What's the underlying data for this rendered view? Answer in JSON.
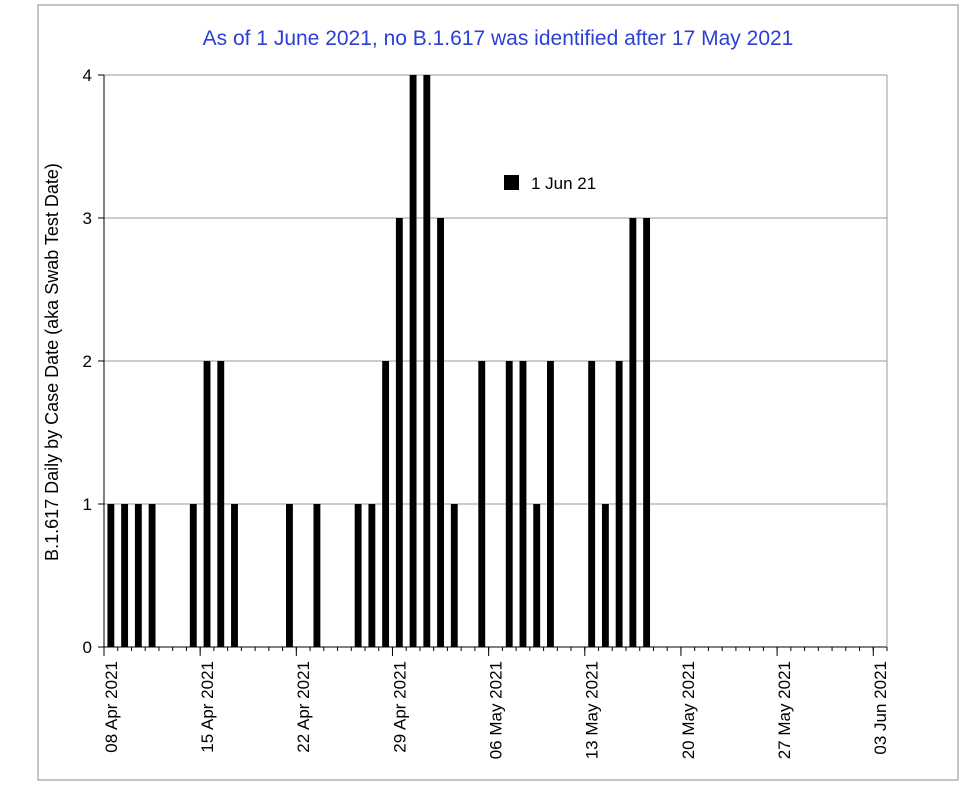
{
  "chart_data": {
    "type": "bar",
    "title": "As of 1 June 2021, no B.1.617 was identified after 17 May 2021",
    "title_color": "#2b3fd6",
    "xlabel": "",
    "ylabel": "B.1.617 Daily by Case Date (aka Swab Test Date)",
    "x_start": "08 Apr 2021",
    "x_end": "03 Jun 2021",
    "x_tick_labels": [
      "08 Apr 2021",
      "15 Apr 2021",
      "22 Apr 2021",
      "29 Apr 2021",
      "06 May 2021",
      "13 May 2021",
      "20 May 2021",
      "27 May 2021",
      "03 Jun 2021"
    ],
    "ylim": [
      0,
      4
    ],
    "y_ticks": [
      0,
      1,
      2,
      3,
      4
    ],
    "grid": true,
    "legend_position": "top-center",
    "bar_color": "#000000",
    "series": [
      {
        "name": "1 Jun 21",
        "values": [
          {
            "date": "08 Apr 2021",
            "value": 1
          },
          {
            "date": "09 Apr 2021",
            "value": 1
          },
          {
            "date": "10 Apr 2021",
            "value": 1
          },
          {
            "date": "11 Apr 2021",
            "value": 1
          },
          {
            "date": "14 Apr 2021",
            "value": 1
          },
          {
            "date": "15 Apr 2021",
            "value": 2
          },
          {
            "date": "16 Apr 2021",
            "value": 2
          },
          {
            "date": "17 Apr 2021",
            "value": 1
          },
          {
            "date": "21 Apr 2021",
            "value": 1
          },
          {
            "date": "23 Apr 2021",
            "value": 1
          },
          {
            "date": "26 Apr 2021",
            "value": 1
          },
          {
            "date": "27 Apr 2021",
            "value": 1
          },
          {
            "date": "28 Apr 2021",
            "value": 2
          },
          {
            "date": "29 Apr 2021",
            "value": 3
          },
          {
            "date": "30 Apr 2021",
            "value": 4
          },
          {
            "date": "01 May 2021",
            "value": 4
          },
          {
            "date": "02 May 2021",
            "value": 3
          },
          {
            "date": "03 May 2021",
            "value": 1
          },
          {
            "date": "05 May 2021",
            "value": 2
          },
          {
            "date": "07 May 2021",
            "value": 2
          },
          {
            "date": "08 May 2021",
            "value": 2
          },
          {
            "date": "09 May 2021",
            "value": 1
          },
          {
            "date": "10 May 2021",
            "value": 2
          },
          {
            "date": "13 May 2021",
            "value": 2
          },
          {
            "date": "14 May 2021",
            "value": 1
          },
          {
            "date": "15 May 2021",
            "value": 2
          },
          {
            "date": "16 May 2021",
            "value": 3
          },
          {
            "date": "17 May 2021",
            "value": 3
          }
        ]
      }
    ]
  }
}
